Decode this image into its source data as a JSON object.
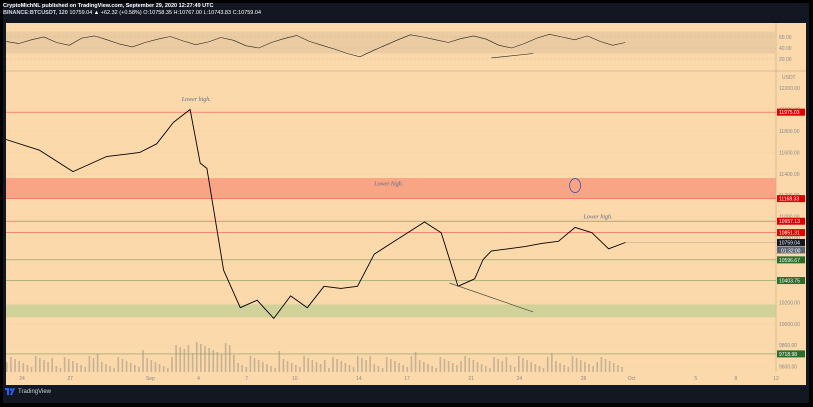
{
  "header": {
    "line1": "CryptoMichNL published on TradingView.com, September 29, 2020 12:27:49 UTC",
    "line2_symbol": "BINANCE:BTCUSDT, 120",
    "line2_values": "10759.04 ▲ +62.32 (+0.58%) O:10758.35 H:10767.00 L:10743.83 C:10759.04"
  },
  "footer": {
    "brand": "TradingView"
  },
  "colors": {
    "background": "#fbd9ab",
    "line": "#000000",
    "red_line": "#ef5350",
    "zone_red": "#f79a7e",
    "zone_green": "#c9cf97",
    "rsi_band": "#ebcba2"
  },
  "chart_data": {
    "type": "line",
    "series_label": "BTCUSDT",
    "x_ticks": [
      "24",
      "27",
      "Sep",
      "4",
      "7",
      "10",
      "14",
      "17",
      "21",
      "24",
      "28",
      "Oct",
      "5",
      "8",
      "12"
    ],
    "ylim": [
      9550,
      12350
    ],
    "y_ticks": [
      9600,
      9800,
      10000,
      10200,
      10400,
      10600,
      10800,
      11000,
      11200,
      11400,
      11600,
      11800,
      12000,
      12200
    ],
    "y_tick_labels": [
      "9600.00",
      "9800.00",
      "10000.00",
      "10200.00",
      "10400.00",
      "10600.00",
      "10800.00",
      "11000.00",
      "11200.00",
      "11400.00",
      "11600.00",
      "11800.00",
      "12000.00",
      "12200.00"
    ],
    "axis_unit": "USDT",
    "price_x": [
      0,
      2,
      4,
      6,
      8,
      9,
      10,
      11,
      11.6,
      12,
      13,
      14,
      15,
      16,
      17,
      18,
      19,
      20,
      21,
      22,
      23,
      24,
      25,
      25.5,
      26,
      27,
      28,
      28.5,
      29,
      30,
      31,
      32,
      33,
      34,
      35,
      36,
      37
    ],
    "price_y": [
      11720,
      11620,
      11420,
      11560,
      11600,
      11680,
      11880,
      12000,
      11500,
      11450,
      10500,
      10150,
      10220,
      10050,
      10260,
      10150,
      10350,
      10330,
      10350,
      10650,
      10750,
      10850,
      10950,
      10900,
      10850,
      10350,
      10420,
      10600,
      10680,
      10700,
      10720,
      10750,
      10770,
      10900,
      10850,
      10700,
      10759
    ],
    "horizontal_levels": [
      {
        "value": 11975.03,
        "label": "11975.03",
        "color": "#ef5350",
        "tag": "#e00000"
      },
      {
        "value": 11168.33,
        "label": "11168.33",
        "color": "#ef5350",
        "tag": "#e00000"
      },
      {
        "value": 10957.13,
        "label": "10957.13",
        "color": "#ef5350",
        "tag": "#e00000"
      },
      {
        "value": 10851.31,
        "label": "10851.31",
        "color": "#ef5350",
        "tag": "#e00000"
      },
      {
        "value": 10596.67,
        "label": "10596.67",
        "color": "#80a060",
        "tag": "#2b6e2b"
      },
      {
        "value": 10403.75,
        "label": "10403.75",
        "color": "#80a060",
        "tag": "#2b6e2b"
      },
      {
        "value": 9718.98,
        "label": "9718.98",
        "color": "#80a060",
        "tag": "#2b6e2b"
      }
    ],
    "current_price": {
      "value": 10759.04,
      "label": "10759.04",
      "timer": "01:32:00"
    },
    "zones": [
      {
        "from": 11170,
        "to": 11360,
        "color": "#f79a7e"
      },
      {
        "from": 10060,
        "to": 10180,
        "color": "#c9cf97"
      }
    ],
    "annotations": [
      {
        "text": "Lower high.",
        "x": 10.5,
        "y": 12080
      },
      {
        "text": "Lower high.",
        "x": 22,
        "y": 11290
      },
      {
        "text": "Lower high.",
        "x": 34.5,
        "y": 10985
      }
    ],
    "rsi": {
      "ticks": [
        60,
        40,
        20
      ],
      "tick_labels": [
        "60.00",
        "40.00",
        "20.00"
      ],
      "band": [
        30,
        70
      ],
      "values": [
        52,
        48,
        55,
        60,
        50,
        45,
        58,
        62,
        55,
        47,
        42,
        50,
        56,
        61,
        53,
        46,
        51,
        59,
        54,
        44,
        40,
        50,
        57,
        63,
        52,
        45,
        38,
        30,
        24,
        35,
        45,
        55,
        64,
        60,
        55,
        50,
        57,
        62,
        56,
        45,
        40,
        48,
        58,
        65,
        60,
        55,
        62,
        52,
        45,
        50
      ]
    }
  }
}
